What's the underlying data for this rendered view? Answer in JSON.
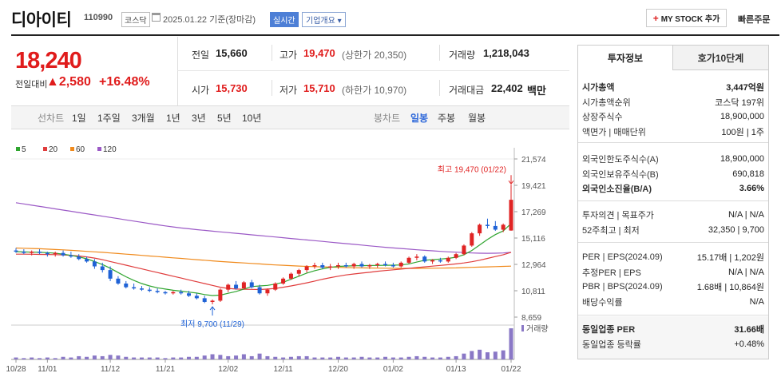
{
  "header": {
    "title": "디아이티",
    "code": "110990",
    "market": "코스닥",
    "date": "2025.01.22  기준(장마감)",
    "realtime": "실시간",
    "info_dropdown": "기업개요",
    "mystock": "MY STOCK 추가",
    "quick_order": "빠른주문"
  },
  "price": {
    "current": "18,240",
    "change_label": "전일대비",
    "change": "▲2,580",
    "change_pct": "+16.48%"
  },
  "quote": {
    "prev_label": "전일",
    "prev": "15,660",
    "high_label": "고가",
    "high": "19,470",
    "upper_limit": "(상한가 20,350)",
    "volume_label": "거래량",
    "volume": "1,218,043",
    "open_label": "시가",
    "open": "15,730",
    "low_label": "저가",
    "low": "15,710",
    "lower_limit": "(하한가 10,970)",
    "amount_label": "거래대금",
    "amount": "22,402",
    "amount_unit": "백만"
  },
  "tabs": {
    "line_label": "선차트",
    "line": [
      "1일",
      "1주일",
      "3개월",
      "1년",
      "3년",
      "5년",
      "10년"
    ],
    "candle_label": "봉차트",
    "candle": [
      "일봉",
      "주봉",
      "월봉"
    ],
    "selected": "일봉"
  },
  "chart_data": {
    "type": "line",
    "legend": [
      "5",
      "20",
      "60",
      "120"
    ],
    "legend_colors": [
      "#2fa52f",
      "#e03c3c",
      "#f08a1c",
      "#9b59c6"
    ],
    "volume_label": "거래량",
    "y_ticks": [
      "21,574",
      "19,421",
      "17,269",
      "15,116",
      "12,964",
      "10,811",
      "8,659"
    ],
    "ylim": [
      8659,
      21574
    ],
    "x_ticks": [
      "10/28",
      "11/01",
      "11/12",
      "11/21",
      "12/02",
      "12/11",
      "12/20",
      "01/02",
      "01/13",
      "01/22"
    ],
    "max_annotation": "최고 19,470 (01/22)",
    "min_annotation": "최저 9,700 (11/29)",
    "candles": [
      [
        14100,
        14300,
        13900,
        14000
      ],
      [
        14000,
        14200,
        13800,
        13900
      ],
      [
        13900,
        14100,
        13700,
        14000
      ],
      [
        14000,
        14200,
        13800,
        13900
      ],
      [
        13900,
        14000,
        13600,
        13800
      ],
      [
        13800,
        14000,
        13600,
        13900
      ],
      [
        13900,
        14100,
        13600,
        13700
      ],
      [
        13700,
        14000,
        13500,
        13600
      ],
      [
        13600,
        13800,
        13300,
        13400
      ],
      [
        13400,
        13600,
        13100,
        13200
      ],
      [
        13200,
        13400,
        12600,
        12800
      ],
      [
        12800,
        13100,
        12300,
        12500
      ],
      [
        12500,
        12800,
        11600,
        11800
      ],
      [
        11800,
        12000,
        11300,
        11400
      ],
      [
        11400,
        11600,
        11000,
        11100
      ],
      [
        11100,
        11400,
        10900,
        11000
      ],
      [
        11000,
        11200,
        10800,
        10900
      ],
      [
        10900,
        11100,
        10700,
        10800
      ],
      [
        10800,
        11000,
        10600,
        10700
      ],
      [
        10700,
        10800,
        10500,
        10600
      ],
      [
        10600,
        10800,
        10500,
        10700
      ],
      [
        10700,
        10900,
        10500,
        10600
      ],
      [
        10600,
        10800,
        10300,
        10400
      ],
      [
        10400,
        10600,
        10100,
        10200
      ],
      [
        10200,
        10400,
        9800,
        9900
      ],
      [
        9900,
        10100,
        9700,
        10000
      ],
      [
        10000,
        11000,
        9900,
        10900
      ],
      [
        10900,
        11400,
        10700,
        11300
      ],
      [
        11300,
        11600,
        10900,
        11000
      ],
      [
        11000,
        11600,
        10900,
        11500
      ],
      [
        11500,
        11700,
        11000,
        11100
      ],
      [
        11100,
        11300,
        10500,
        10600
      ],
      [
        10600,
        11000,
        10400,
        10900
      ],
      [
        10900,
        11500,
        10800,
        11400
      ],
      [
        11400,
        11900,
        11300,
        11800
      ],
      [
        11800,
        12300,
        11700,
        12200
      ],
      [
        12200,
        12600,
        12000,
        12500
      ],
      [
        12500,
        12900,
        12300,
        12800
      ],
      [
        12800,
        13100,
        12600,
        12900
      ],
      [
        12900,
        13100,
        12600,
        12700
      ],
      [
        12700,
        13000,
        12500,
        12800
      ],
      [
        12800,
        13100,
        12600,
        12900
      ],
      [
        12900,
        13100,
        12700,
        12800
      ],
      [
        12800,
        13100,
        12600,
        13000
      ],
      [
        13000,
        13200,
        12700,
        12800
      ],
      [
        12800,
        13000,
        12600,
        12900
      ],
      [
        12900,
        13100,
        12700,
        13000
      ],
      [
        13000,
        13200,
        12800,
        12900
      ],
      [
        12900,
        13100,
        12700,
        12800
      ],
      [
        12800,
        13200,
        12700,
        13100
      ],
      [
        13100,
        13600,
        13000,
        13500
      ],
      [
        13500,
        13800,
        13300,
        13600
      ],
      [
        13600,
        13700,
        13100,
        13200
      ],
      [
        13200,
        13400,
        13000,
        13300
      ],
      [
        13300,
        13500,
        13100,
        13200
      ],
      [
        13200,
        13600,
        13100,
        13500
      ],
      [
        13500,
        13900,
        13400,
        13800
      ],
      [
        13800,
        14600,
        13700,
        14500
      ],
      [
        14500,
        15600,
        14400,
        15500
      ],
      [
        15500,
        16300,
        15300,
        16200
      ],
      [
        16200,
        16700,
        15900,
        16100
      ],
      [
        16100,
        16500,
        15700,
        15800
      ],
      [
        15800,
        16300,
        15600,
        16200
      ],
      [
        15730,
        19470,
        15710,
        18240
      ]
    ],
    "ma5": [
      14000,
      13980,
      13960,
      13950,
      13920,
      13880,
      13800,
      13700,
      13580,
      13420,
      13200,
      12950,
      12650,
      12300,
      11950,
      11650,
      11400,
      11200,
      11050,
      10950,
      10850,
      10780,
      10700,
      10620,
      10500,
      10420,
      10450,
      10600,
      10750,
      10950,
      11150,
      11200,
      11250,
      11350,
      11500,
      11750,
      12000,
      12250,
      12450,
      12600,
      12720,
      12800,
      12830,
      12850,
      12860,
      12870,
      12880,
      12890,
      12900,
      12920,
      13000,
      13150,
      13300,
      13350,
      13400,
      13450,
      13550,
      13750,
      14100,
      14550,
      15000,
      15400,
      15700,
      16300
    ],
    "ma20": [
      13800,
      13800,
      13790,
      13780,
      13770,
      13760,
      13740,
      13700,
      13650,
      13580,
      13480,
      13350,
      13200,
      13050,
      12900,
      12750,
      12600,
      12450,
      12300,
      12150,
      12000,
      11850,
      11700,
      11550,
      11400,
      11250,
      11100,
      11000,
      10950,
      10930,
      10920,
      10910,
      10950,
      11000,
      11100,
      11200,
      11330,
      11460,
      11600,
      11750,
      11880,
      12000,
      12100,
      12180,
      12250,
      12320,
      12400,
      12460,
      12520,
      12580,
      12640,
      12700,
      12760,
      12820,
      12880,
      12940,
      13000,
      13080,
      13180,
      13300,
      13450,
      13600,
      13750,
      13950
    ],
    "ma60": [
      14300,
      14280,
      14260,
      14240,
      14210,
      14180,
      14150,
      14110,
      14070,
      14030,
      13990,
      13950,
      13900,
      13850,
      13800,
      13750,
      13700,
      13650,
      13600,
      13550,
      13500,
      13450,
      13400,
      13350,
      13300,
      13250,
      13200,
      13160,
      13120,
      13080,
      13040,
      13000,
      12960,
      12920,
      12890,
      12860,
      12830,
      12800,
      12780,
      12760,
      12740,
      12720,
      12700,
      12690,
      12680,
      12670,
      12660,
      12650,
      12645,
      12640,
      12640,
      12640,
      12645,
      12650,
      12660,
      12670,
      12680,
      12700,
      12720,
      12740,
      12760,
      12780,
      12800,
      12820
    ],
    "ma120": [
      18000,
      17900,
      17800,
      17700,
      17600,
      17500,
      17400,
      17300,
      17200,
      17100,
      17000,
      16900,
      16800,
      16700,
      16600,
      16500,
      16400,
      16300,
      16200,
      16110,
      16020,
      15940,
      15870,
      15800,
      15740,
      15680,
      15620,
      15560,
      15500,
      15440,
      15380,
      15320,
      15260,
      15200,
      15140,
      15080,
      15020,
      14960,
      14900,
      14840,
      14780,
      14720,
      14660,
      14600,
      14540,
      14480,
      14420,
      14360,
      14310,
      14260,
      14210,
      14160,
      14110,
      14070,
      14030,
      13990,
      13960,
      13930,
      13900,
      13880,
      13870,
      13880,
      13900,
      13950
    ],
    "volume": [
      3,
      2,
      3,
      2,
      3,
      2,
      4,
      3,
      5,
      4,
      6,
      5,
      7,
      6,
      4,
      3,
      3,
      3,
      3,
      2,
      3,
      3,
      4,
      4,
      6,
      8,
      7,
      5,
      6,
      8,
      5,
      9,
      5,
      4,
      3,
      4,
      5,
      5,
      3,
      3,
      3,
      4,
      3,
      3,
      4,
      3,
      3,
      4,
      3,
      3,
      4,
      5,
      4,
      3,
      3,
      4,
      5,
      9,
      13,
      15,
      11,
      12,
      14,
      48
    ]
  },
  "right_panel": {
    "tab1": "투자정보",
    "tab2": "호가10단계",
    "group1": [
      {
        "l": "시가총액",
        "r": "3,447억원",
        "bold": true
      },
      {
        "l": "시가총액순위",
        "r": "코스닥 197위"
      },
      {
        "l": "상장주식수",
        "r": "18,900,000"
      },
      {
        "l": "액면가 | 매매단위",
        "r": "100원 | 1주"
      }
    ],
    "group2": [
      {
        "l": "외국인한도주식수(A)",
        "r": "18,900,000"
      },
      {
        "l": "외국인보유주식수(B)",
        "r": "690,818"
      },
      {
        "l": "외국인소진율(B/A)",
        "r": "3.66%",
        "bold": true
      }
    ],
    "group3": [
      {
        "l": "투자의견 | 목표주가",
        "r": "N/A | N/A"
      },
      {
        "l": "52주최고 | 최저",
        "r": "32,350 | 9,700"
      }
    ],
    "group4": [
      {
        "l": "PER | EPS(2024.09)",
        "r": "15.17배 | 1,202원"
      },
      {
        "l": "추정PER | EPS",
        "r": "N/A | N/A"
      },
      {
        "l": "PBR | BPS(2024.09)",
        "r": "1.68배 | 10,864원"
      },
      {
        "l": "배당수익률",
        "r": "N/A"
      }
    ],
    "group5": [
      {
        "l": "동일업종 PER",
        "r": "31.66배",
        "bold": true
      },
      {
        "l": "동일업종 등락률",
        "r": "+0.48%",
        "red": true
      }
    ]
  }
}
